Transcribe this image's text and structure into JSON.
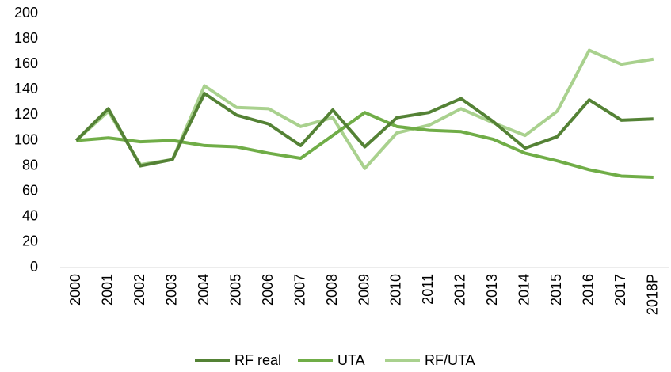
{
  "chart_data": {
    "type": "line",
    "categories": [
      "2000",
      "2001",
      "2002",
      "2003",
      "2004",
      "2005",
      "2006",
      "2007",
      "2008",
      "2009",
      "2010",
      "2011",
      "2012",
      "2013",
      "2014",
      "2015",
      "2016",
      "2017",
      "2018P"
    ],
    "series": [
      {
        "name": "RF real",
        "color": "#548235",
        "values": [
          100,
          125,
          80,
          85,
          137,
          120,
          113,
          96,
          124,
          95,
          118,
          122,
          133,
          115,
          94,
          103,
          132,
          116,
          117
        ]
      },
      {
        "name": "UTA",
        "color": "#70ad47",
        "values": [
          100,
          102,
          99,
          100,
          96,
          95,
          90,
          86,
          104,
          122,
          111,
          108,
          107,
          101,
          90,
          84,
          77,
          72,
          71
        ]
      },
      {
        "name": "RF/UTA",
        "color": "#a9d18e",
        "values": [
          100,
          123,
          81,
          85,
          143,
          126,
          125,
          111,
          118,
          78,
          106,
          112,
          125,
          114,
          104,
          123,
          171,
          160,
          164
        ]
      }
    ],
    "ylim": [
      0,
      200
    ],
    "yticks": [
      0,
      20,
      40,
      60,
      80,
      100,
      120,
      140,
      160,
      180,
      200
    ],
    "grid": false,
    "legend": "bottom"
  }
}
